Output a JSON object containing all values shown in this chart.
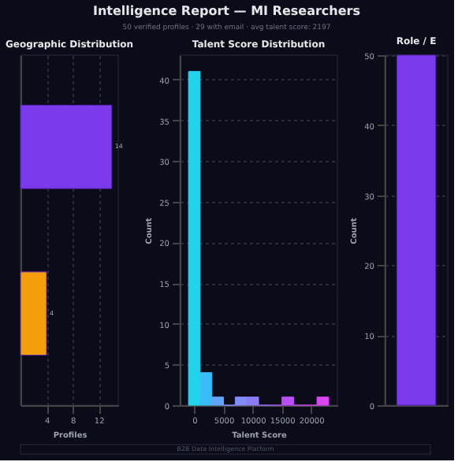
{
  "chart_data": [
    {
      "type": "bar",
      "orientation": "horizontal",
      "title": "Geographic Distribution",
      "xlabel": "Profiles",
      "categories": [
        null,
        null
      ],
      "values": [
        14,
        4
      ],
      "colors": [
        "#7c3aed",
        "#f59e0b"
      ],
      "xlim": [
        0,
        15
      ],
      "xticks": [
        4,
        8,
        12
      ],
      "data_labels": true,
      "grid": "x",
      "annotations": [
        "Intelligence Report — MI Researchers",
        "50 verified profiles  ·  29 with email  ·  avg talent score: 2197",
        "B2B Data Intelligence Platform"
      ]
    },
    {
      "type": "histogram",
      "title": "Talent Score Distribution",
      "xlabel": "Talent Score",
      "ylabel": "Count",
      "bins": [
        -1000,
        1000,
        3000,
        5000,
        7000,
        9000,
        11000,
        13000,
        15000,
        17000,
        19000,
        21000,
        23000
      ],
      "values": [
        41,
        4,
        1,
        0,
        1,
        1,
        0,
        0,
        1,
        0,
        0,
        1
      ],
      "colors": [
        "#22d3ee",
        "#38bdf8",
        "#60a5fa",
        "#818cf8",
        "#818cf8",
        "#8b7cf6",
        "#9d6af5",
        "#a855f7",
        "#b84ff2",
        "#c44aef",
        "#cf45ec",
        "#d946ef"
      ],
      "xlim": [
        -2500,
        24500
      ],
      "xticks": [
        0,
        5000,
        10000,
        15000,
        20000
      ],
      "ylim": [
        0,
        43
      ],
      "yticks": [
        0,
        5,
        10,
        15,
        20,
        25,
        30,
        35,
        40
      ],
      "grid": "y"
    },
    {
      "type": "bar",
      "title": "Role / E",
      "ylabel": "Count",
      "categories": [
        null
      ],
      "values": [
        50
      ],
      "colors": [
        "#7c3aed"
      ],
      "ylim": [
        0,
        50
      ],
      "yticks": [
        0,
        10,
        20,
        30,
        40,
        50
      ],
      "grid": "y"
    }
  ]
}
